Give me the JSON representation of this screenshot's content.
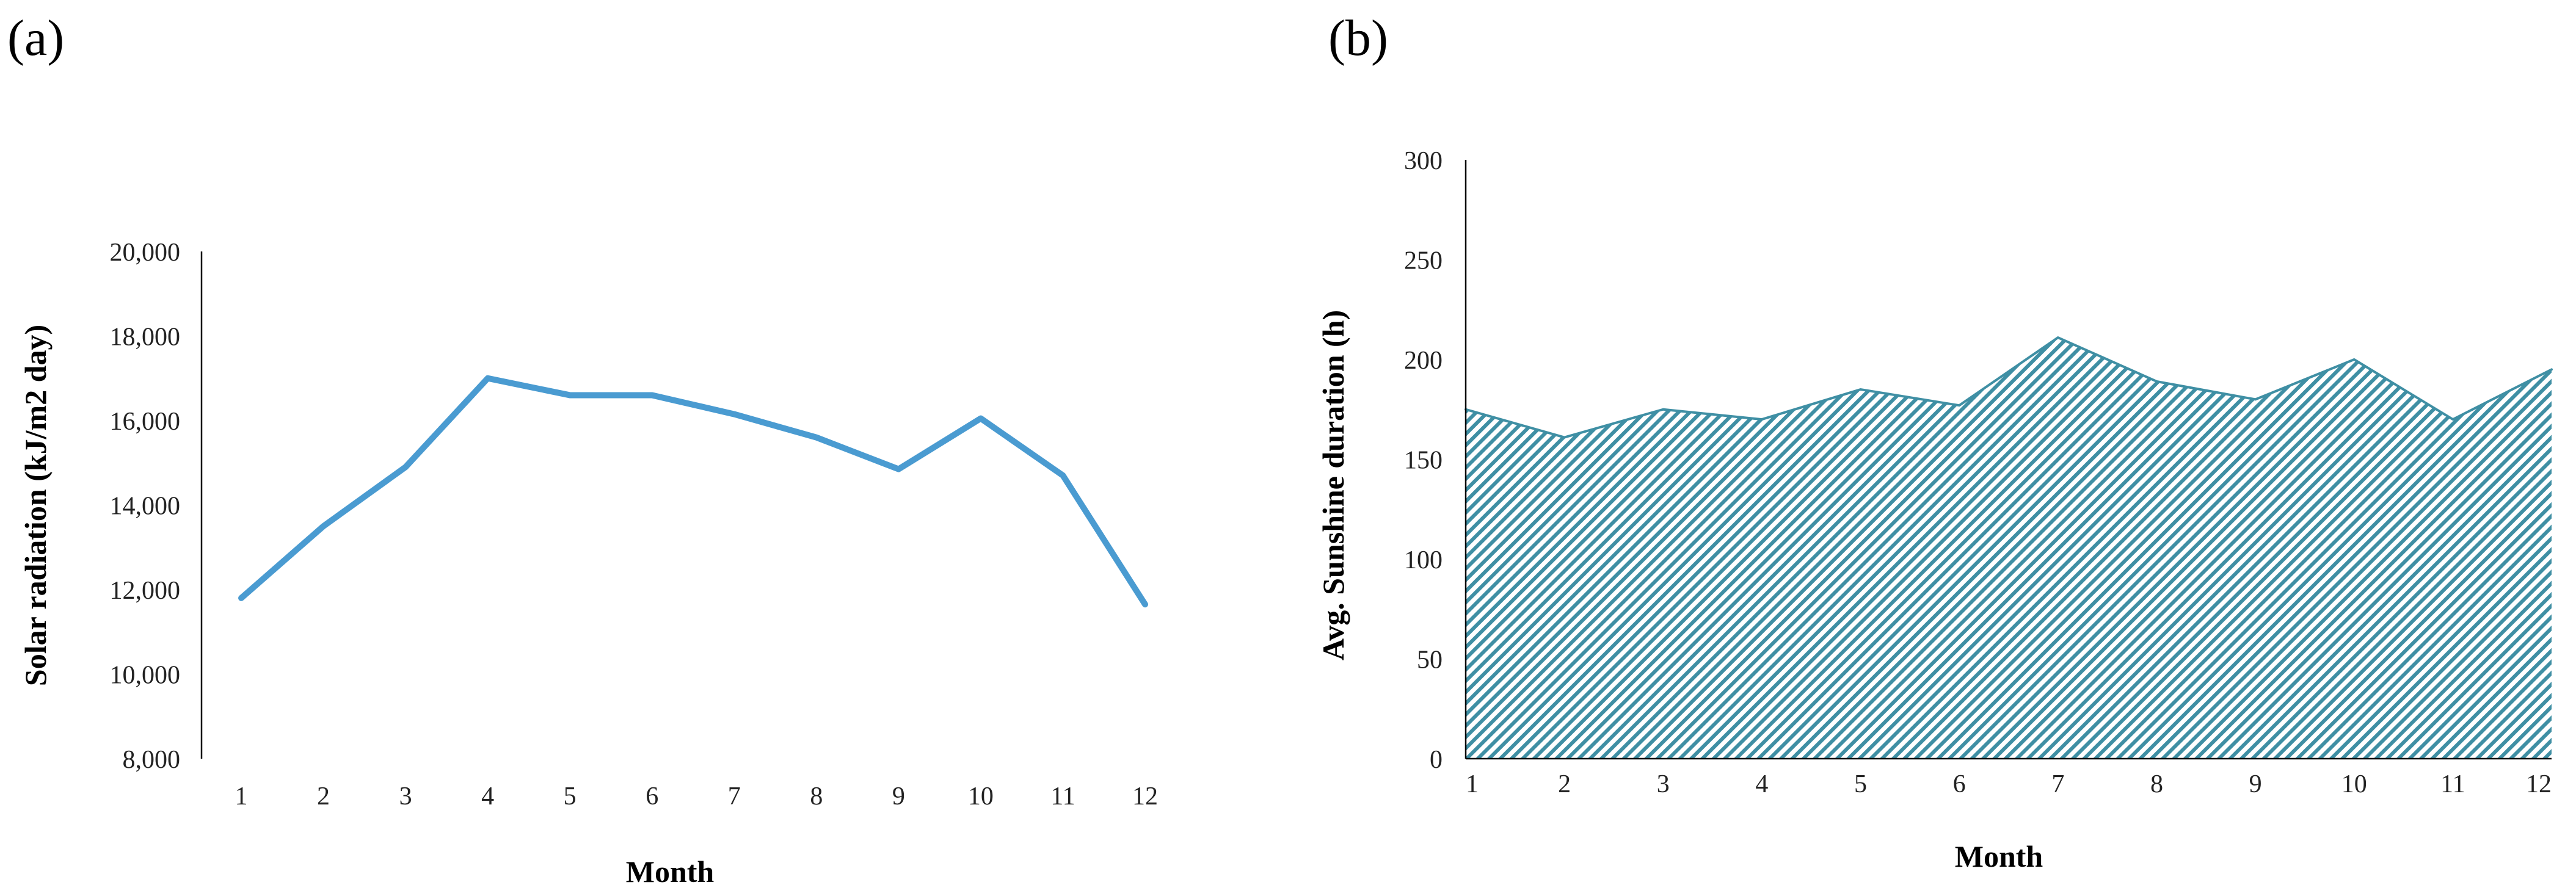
{
  "chart_data": [
    {
      "panel_label": "(a)",
      "type": "line",
      "xlabel": "Month",
      "ylabel": "Solar radiation (kJ/m2 day)",
      "categories": [
        "1",
        "2",
        "3",
        "4",
        "5",
        "6",
        "7",
        "8",
        "9",
        "10",
        "11",
        "12"
      ],
      "y_ticks": [
        "8,000",
        "10,000",
        "12,000",
        "14,000",
        "16,000",
        "18,000",
        "20,000"
      ],
      "ylim": [
        8000,
        20000
      ],
      "values": [
        11800,
        13500,
        14900,
        17000,
        16600,
        16600,
        16150,
        15600,
        14850,
        16050,
        14700,
        11650
      ],
      "color": "#4a9bd1",
      "grid": false,
      "legend": "none"
    },
    {
      "panel_label": "(b)",
      "type": "area",
      "xlabel": "Month",
      "ylabel": "Avg. Sunshine duration (h)",
      "categories": [
        "1",
        "2",
        "3",
        "4",
        "5",
        "6",
        "7",
        "8",
        "9",
        "10",
        "11",
        "12"
      ],
      "y_ticks": [
        "0",
        "50",
        "100",
        "150",
        "200",
        "250",
        "300"
      ],
      "ylim": [
        0,
        300
      ],
      "values": [
        175,
        161,
        175,
        170,
        185,
        177,
        211,
        189,
        180,
        200,
        170,
        195
      ],
      "color": "#3f8fa4",
      "fill_pattern": "diagonal-hatch",
      "grid": false,
      "legend": "none"
    }
  ]
}
